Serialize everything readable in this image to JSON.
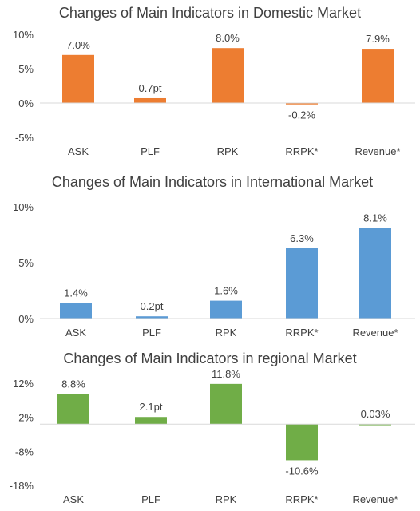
{
  "chart_data": [
    {
      "type": "bar",
      "title": "Changes of Main Indicators in Domestic Market",
      "categories": [
        "ASK",
        "PLF",
        "RPK",
        "RRPK*",
        "Revenue*"
      ],
      "values": [
        7.0,
        0.7,
        8.0,
        -0.2,
        7.9
      ],
      "data_labels": [
        "7.0%",
        "0.7pt",
        "8.0%",
        "-0.2%",
        "7.9%"
      ],
      "ylim": [
        -5,
        10
      ],
      "yticks": [
        10,
        5,
        0,
        -5
      ],
      "ytick_labels": [
        "10%",
        "5%",
        "0%",
        "-5%"
      ],
      "color": "#ED7D31",
      "grid": false
    },
    {
      "type": "bar",
      "title": "Changes of Main Indicators in International Market",
      "categories": [
        "ASK",
        "PLF",
        "RPK",
        "RRPK*",
        "Revenue*"
      ],
      "values": [
        1.4,
        0.2,
        1.6,
        6.3,
        8.1
      ],
      "data_labels": [
        "1.4%",
        "0.2pt",
        "1.6%",
        "6.3%",
        "8.1%"
      ],
      "ylim": [
        0,
        10
      ],
      "yticks": [
        10,
        5,
        0
      ],
      "ytick_labels": [
        "10%",
        "5%",
        "0%"
      ],
      "color": "#5B9BD5",
      "grid": false
    },
    {
      "type": "bar",
      "title": "Changes of Main Indicators in regional Market",
      "categories": [
        "ASK",
        "PLF",
        "RPK",
        "RRPK*",
        "Revenue*"
      ],
      "values": [
        8.8,
        2.1,
        11.8,
        -10.6,
        0.03
      ],
      "data_labels": [
        "8.8%",
        "2.1pt",
        "11.8%",
        "-10.6%",
        "0.03%"
      ],
      "ylim": [
        -18,
        12
      ],
      "yticks": [
        12,
        2,
        -8,
        -18
      ],
      "ytick_labels": [
        "12%",
        "2%",
        "-8%",
        "-18%"
      ],
      "color": "#70AD47",
      "grid": false
    }
  ]
}
